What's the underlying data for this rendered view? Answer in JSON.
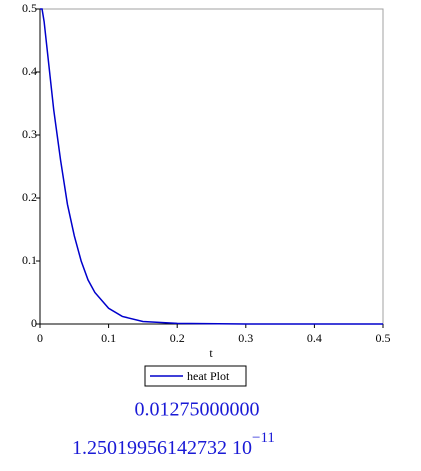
{
  "chart_data": {
    "type": "line",
    "x_label": "t",
    "x": [
      0,
      0.003,
      0.006,
      0.01,
      0.015,
      0.02,
      0.025,
      0.03,
      0.04,
      0.05,
      0.06,
      0.07,
      0.08,
      0.1,
      0.12,
      0.15,
      0.2,
      0.3,
      0.4,
      0.5
    ],
    "series": [
      {
        "name": "heat Plot",
        "color": "#0000cc",
        "values": [
          0.5,
          0.5,
          0.48,
          0.44,
          0.39,
          0.34,
          0.3,
          0.26,
          0.19,
          0.14,
          0.1,
          0.07,
          0.05,
          0.025,
          0.012,
          0.004,
          0.001,
          0,
          0,
          0
        ]
      }
    ],
    "xlim": [
      0,
      0.5
    ],
    "xticks": [
      0,
      0.1,
      0.2,
      0.3,
      0.4,
      0.5
    ],
    "ylim": [
      0,
      0.5
    ],
    "yticks": [
      0,
      0.1,
      0.2,
      0.3,
      0.4,
      0.5
    ],
    "legend": "bottom"
  },
  "outputs": [
    {
      "text": "0.01275000000"
    },
    {
      "text": "1.25019956142732 10",
      "exponent": "−11"
    }
  ]
}
